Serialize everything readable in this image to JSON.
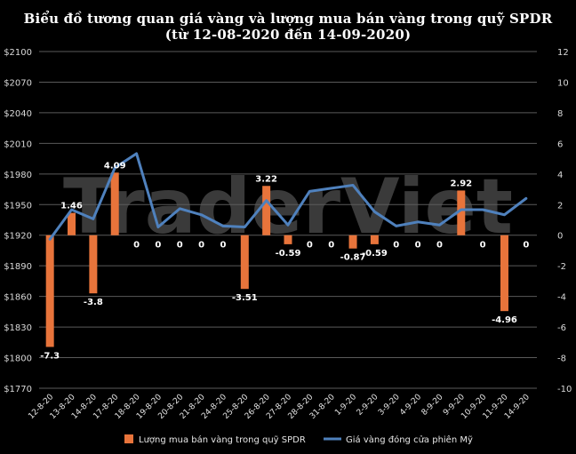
{
  "chart_data": {
    "type": "bar+line",
    "title": "Biểu đồ tương quan giá vàng và lượng mua bán vàng trong quỹ SPDR",
    "subtitle": "(từ 12-08-2020 đến 14-09-2020)",
    "watermark": "TraderViet",
    "categories": [
      "12-8-20",
      "13-8-20",
      "14-8-20",
      "17-8-20",
      "18-8-20",
      "19-8-20",
      "20-8-20",
      "21-8-20",
      "24-8-20",
      "25-8-20",
      "26-8-20",
      "27-8-20",
      "28-8-20",
      "31-8-20",
      "1-9-20",
      "2-9-20",
      "3-9-20",
      "4-9-20",
      "8-9-20",
      "9-9-20",
      "10-9-20",
      "11-9-20",
      "14-9-20"
    ],
    "left_axis": {
      "ylim": [
        1770,
        2100
      ],
      "ticks": [
        "$1770",
        "$1800",
        "$1830",
        "$1860",
        "$1890",
        "$1920",
        "$1950",
        "$1980",
        "$2010",
        "$2040",
        "$2070",
        "$2100"
      ]
    },
    "right_axis": {
      "ylim": [
        -10,
        12
      ],
      "ticks": [
        "-10",
        "-8",
        "-6",
        "-4",
        "-2",
        "0",
        "2",
        "4",
        "6",
        "8",
        "10",
        "12"
      ]
    },
    "series": [
      {
        "name": "Lượng mua bán vàng trong quỹ SPDR",
        "type": "bar",
        "axis": "right",
        "color": "#e8743b",
        "values": [
          -7.3,
          1.46,
          -3.8,
          4.09,
          0,
          0,
          0,
          0,
          0,
          -3.51,
          3.22,
          -0.59,
          0,
          0,
          -0.87,
          -0.59,
          0,
          0,
          0,
          2.92,
          0,
          -4.96,
          0
        ],
        "labels": [
          "-7.3",
          "1.46",
          "-3.8",
          "4.09",
          "0",
          "0",
          "0",
          "0",
          "0",
          "-3.51",
          "3.22",
          "-0.59",
          "0",
          "0",
          "-0.87",
          "-0.59",
          "0",
          "0",
          "0",
          "2.92",
          "0",
          "-4.96",
          "0"
        ]
      },
      {
        "name": "Giá vàng đóng cửa phiên Mỹ",
        "type": "line",
        "axis": "left",
        "color": "#4f81bd",
        "values": [
          1916,
          1945,
          1936,
          1986,
          2000,
          1928,
          1946,
          1940,
          1929,
          1928,
          1954,
          1930,
          1963,
          1966,
          1969,
          1943,
          1929,
          1933,
          1930,
          1945,
          1945,
          1940,
          1956
        ]
      }
    ]
  }
}
